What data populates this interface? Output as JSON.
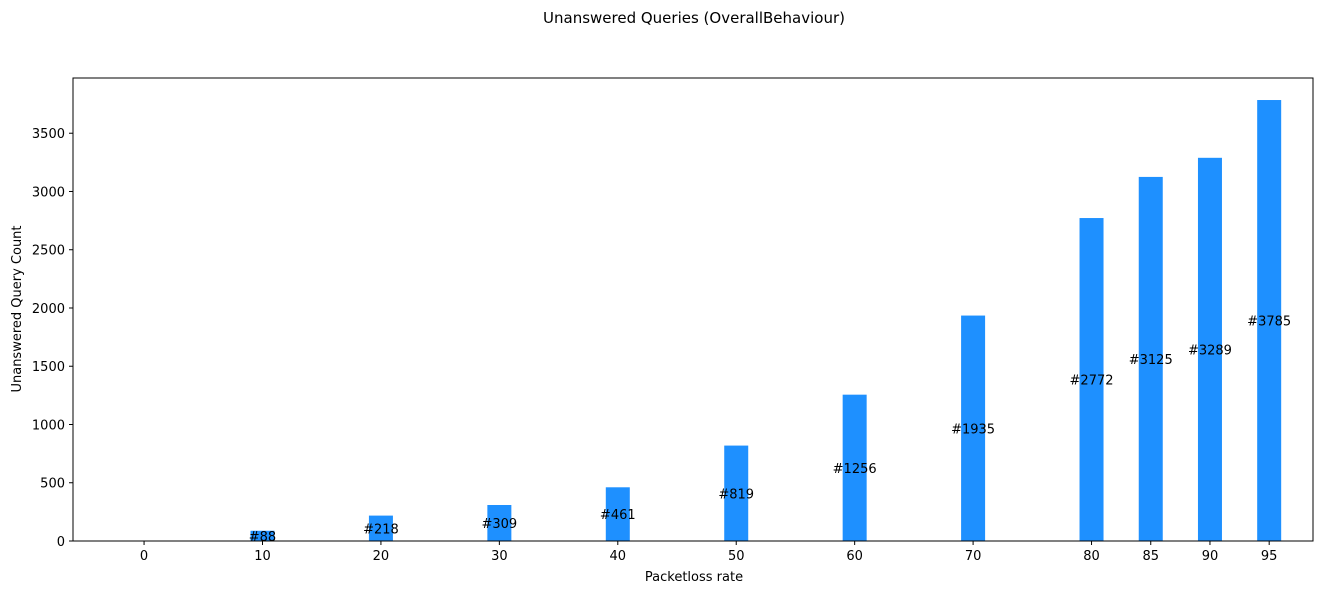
{
  "chart_data": {
    "type": "bar",
    "title": "Unanswered Queries (OverallBehaviour)",
    "xlabel": "Packetloss rate",
    "ylabel": "Unanswered Query Count",
    "categories": [
      "0",
      "10",
      "20",
      "30",
      "40",
      "50",
      "60",
      "70",
      "80",
      "85",
      "90",
      "95"
    ],
    "x": [
      0,
      10,
      20,
      30,
      40,
      50,
      60,
      70,
      80,
      85,
      90,
      95
    ],
    "values": [
      0,
      88,
      218,
      309,
      461,
      819,
      1256,
      1935,
      2772,
      3125,
      3289,
      3785
    ],
    "data_labels": [
      "",
      "#88",
      "#218",
      "#309",
      "#461",
      "#819",
      "#1256",
      "#1935",
      "#2772",
      "#3125",
      "#3289",
      "#3785"
    ],
    "yticks": [
      0,
      500,
      1000,
      1500,
      2000,
      2500,
      3000,
      3500
    ],
    "xlim": [
      -6,
      98.7
    ],
    "ylim": [
      0,
      3974
    ],
    "bar_color": "#1e90ff",
    "grid": false,
    "legend": "none"
  }
}
